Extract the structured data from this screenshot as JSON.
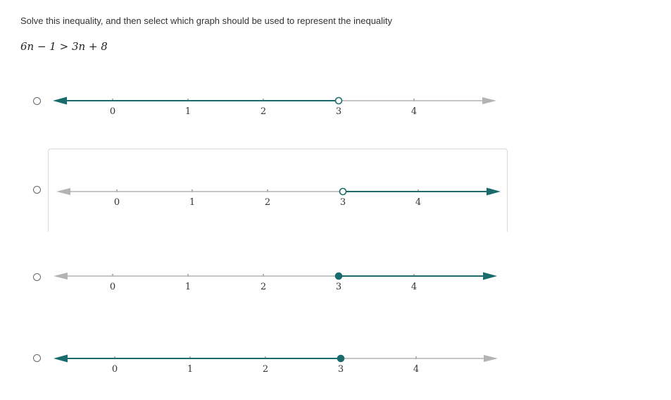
{
  "question": {
    "prompt": "Solve this inequality, and then select which graph should be used to represent the inequality",
    "equation": "6n − 1 > 3n + 8"
  },
  "colors": {
    "shaded": "#1a6b6b",
    "unshaded": "#b3b3b3",
    "tick": "#b3b3b3"
  },
  "options": [
    {
      "id": "a",
      "ticks": [
        "0",
        "1",
        "2",
        "3",
        "4"
      ],
      "point_value": 3,
      "point_type": "open",
      "direction": "left"
    },
    {
      "id": "b",
      "ticks": [
        "0",
        "1",
        "2",
        "3",
        "4"
      ],
      "point_value": 3,
      "point_type": "open",
      "direction": "right"
    },
    {
      "id": "c",
      "ticks": [
        "0",
        "1",
        "2",
        "3",
        "4"
      ],
      "point_value": 3,
      "point_type": "closed",
      "direction": "right"
    },
    {
      "id": "d",
      "ticks": [
        "0",
        "1",
        "2",
        "3",
        "4"
      ],
      "point_value": 3,
      "point_type": "closed",
      "direction": "left"
    }
  ]
}
